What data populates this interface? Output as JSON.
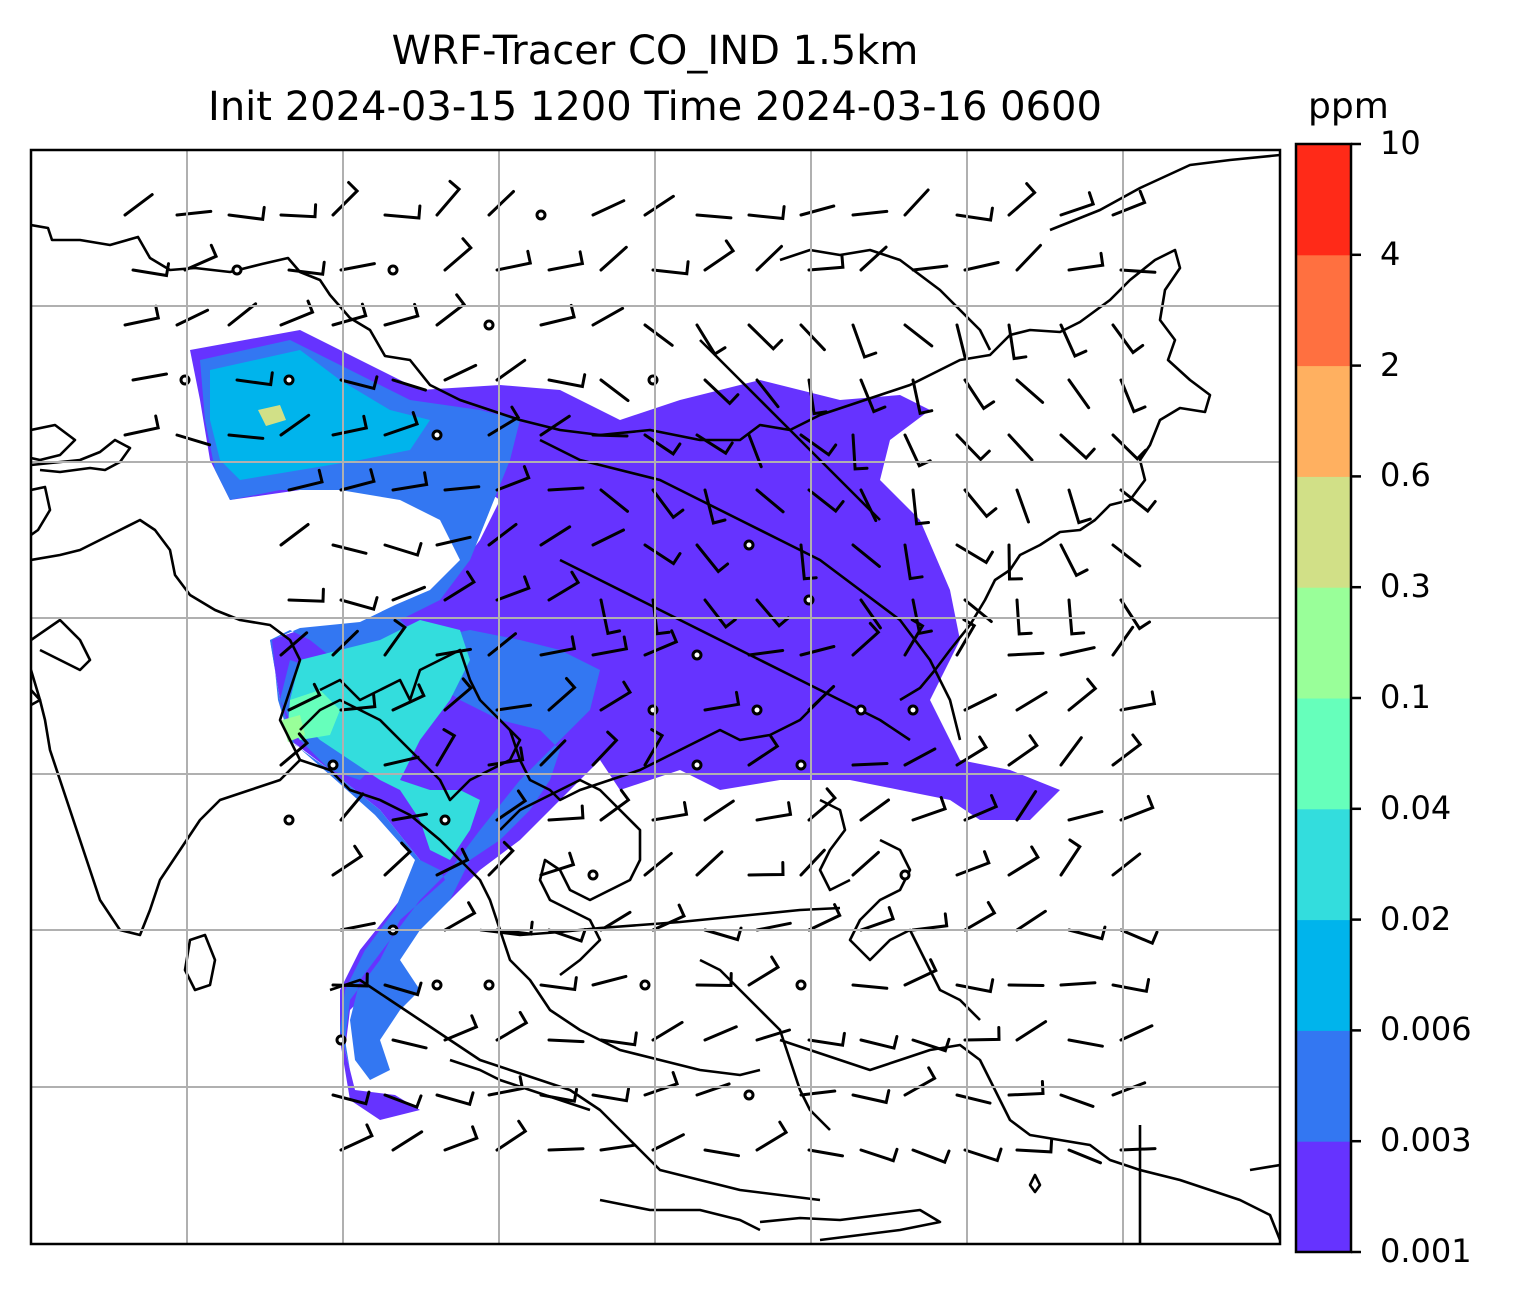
{
  "title": {
    "line1": "WRF-Tracer CO_IND 1.5km",
    "line2": "Init 2024-03-15 1200 Time 2024-03-16 0600"
  },
  "colorbar": {
    "unit": "ppm",
    "levels": [
      "0.001",
      "0.003",
      "0.006",
      "0.02",
      "0.04",
      "0.1",
      "0.3",
      "0.6",
      "2",
      "4",
      "10"
    ],
    "colors": [
      "#6633ff",
      "#3377f2",
      "#00b4ec",
      "#33dddd",
      "#66ffbb",
      "#99ff99",
      "#d1e087",
      "#ffb060",
      "#ff7040",
      "#ff2a18"
    ]
  },
  "map": {
    "gridlines": true,
    "coastline_color": "#000000",
    "gridline_color": "#b0b0b0"
  }
}
